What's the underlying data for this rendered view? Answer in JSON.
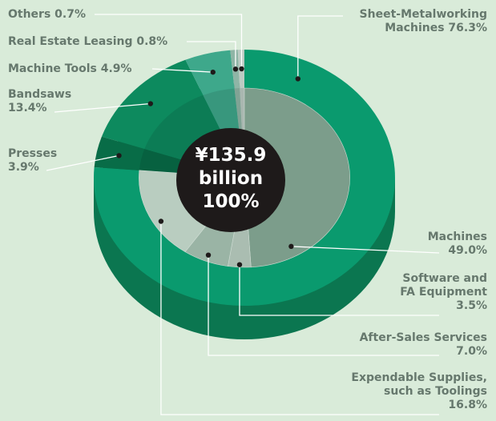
{
  "chart_data": {
    "type": "donut",
    "center_label": "¥135.9 billion",
    "center_share": "100%",
    "categories": [
      "Sheet-Metalworking Machines",
      "Presses",
      "Bandsaws",
      "Machine Tools",
      "Real Estate Leasing",
      "Others"
    ],
    "values": [
      76.3,
      3.9,
      13.4,
      4.9,
      0.8,
      0.7
    ],
    "value_labels": [
      "76.3%",
      "3.9%",
      "13.4%",
      "4.9%",
      "0.8%",
      "0.7%"
    ],
    "colors": [
      "#0a9a6e",
      "#086c47",
      "#0d8a5e",
      "#3ea88b",
      "#8fb5a6",
      "#bccbc3"
    ],
    "breakdown": {
      "categories": [
        "Machines",
        "Software and FA Equipment",
        "After-Sales Services",
        "Expendable Supplies, such as Toolings"
      ],
      "values": [
        49.0,
        3.5,
        7.0,
        16.8
      ],
      "value_labels": [
        "49.0%",
        "3.5%",
        "7.0%",
        "16.8%"
      ],
      "colors": [
        "#7c9d8b",
        "#aabdb1",
        "#9ab4a5",
        "#b9cdc0"
      ]
    }
  }
}
